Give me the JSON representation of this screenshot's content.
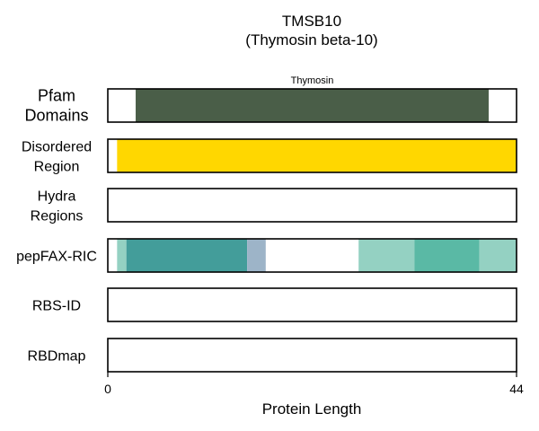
{
  "title_line1": "TMSB10",
  "title_line2": "(Thymosin beta-10)",
  "xlabel": "Protein Length",
  "chart_data": {
    "type": "bar",
    "protein_length": 44,
    "xlim": [
      0,
      44
    ],
    "x_ticks": [
      "0",
      "44"
    ],
    "tracks": [
      {
        "label_lines": [
          "Pfam",
          "Domains"
        ],
        "segments": [
          {
            "start": 3,
            "end": 41,
            "color": "#4a5e48",
            "label": "Thymosin"
          }
        ]
      },
      {
        "label_lines": [
          "Disordered",
          "Region"
        ],
        "segments": [
          {
            "start": 1,
            "end": 44,
            "color": "#ffd700"
          }
        ]
      },
      {
        "label_lines": [
          "Hydra",
          "Regions"
        ],
        "segments": []
      },
      {
        "label_lines": [
          "pepFAX-RIC"
        ],
        "segments": [
          {
            "start": 1,
            "end": 2,
            "color": "#94d1c2"
          },
          {
            "start": 2,
            "end": 15,
            "color": "#439d9a"
          },
          {
            "start": 15,
            "end": 17,
            "color": "#9db4c8"
          },
          {
            "start": 27,
            "end": 33,
            "color": "#94d1c2"
          },
          {
            "start": 33,
            "end": 40,
            "color": "#5ab9a5"
          },
          {
            "start": 40,
            "end": 44,
            "color": "#94d1c2"
          }
        ]
      },
      {
        "label_lines": [
          "RBS-ID"
        ],
        "segments": []
      },
      {
        "label_lines": [
          "RBDmap"
        ],
        "segments": []
      }
    ]
  }
}
